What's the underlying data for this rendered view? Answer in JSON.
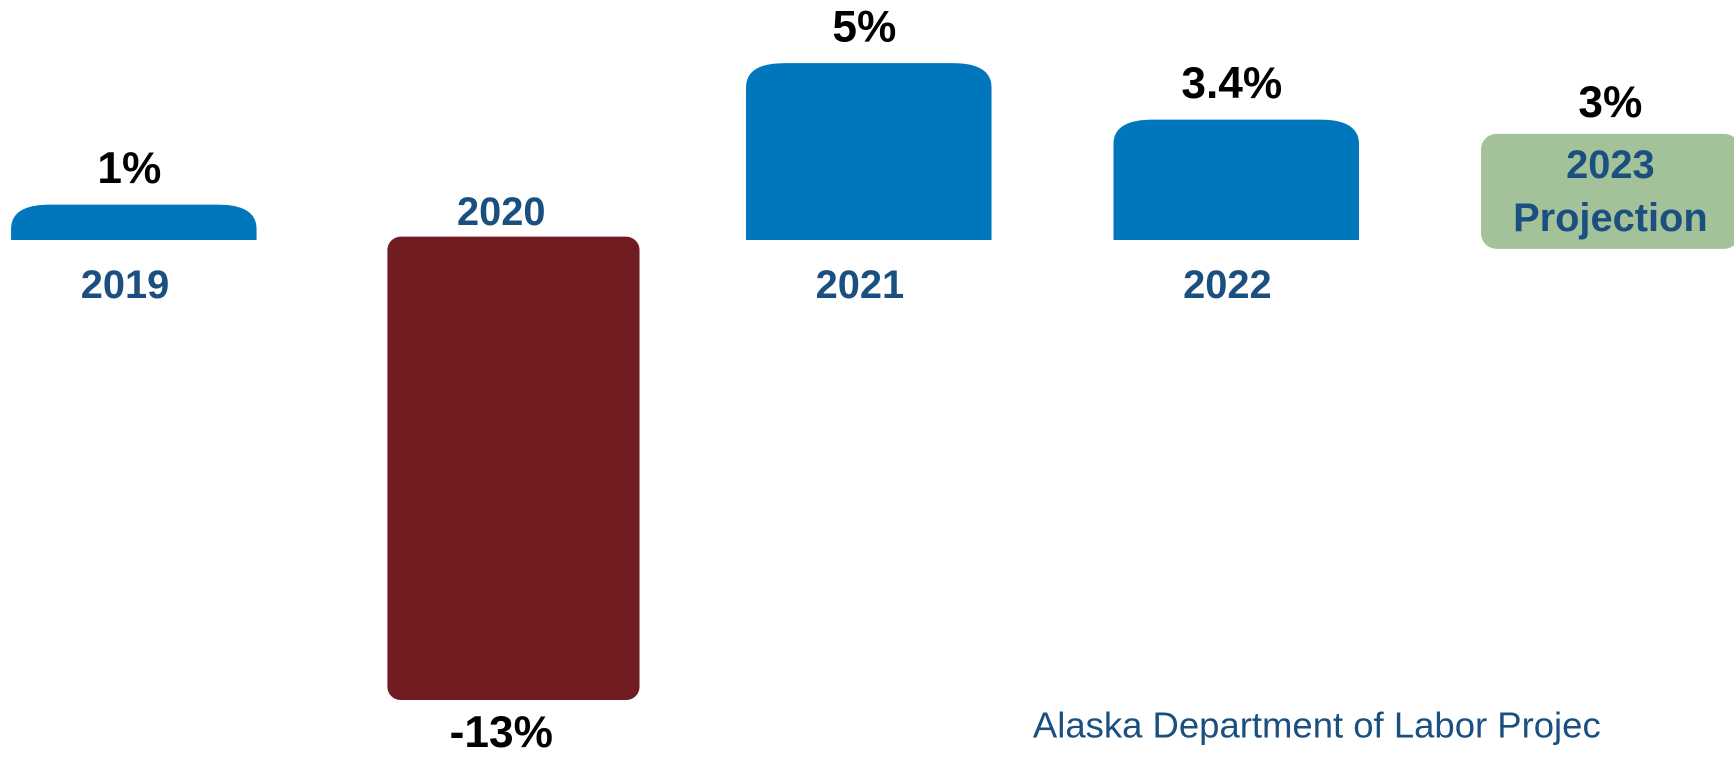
{
  "chart_data": {
    "type": "bar",
    "categories": [
      "2019",
      "2020",
      "2021",
      "2022",
      "2023 Projection"
    ],
    "values": [
      1,
      -13,
      5,
      3.4,
      3
    ],
    "value_labels": [
      "1%",
      "-13%",
      "5%",
      "3.4%",
      "3%"
    ],
    "colors": [
      "#0077bd",
      "#701c20",
      "#0077bd",
      "#0077bd",
      "#a3c29a"
    ],
    "ylim": [
      -14,
      6
    ],
    "source": "Alaska Department of Labor Projec"
  }
}
